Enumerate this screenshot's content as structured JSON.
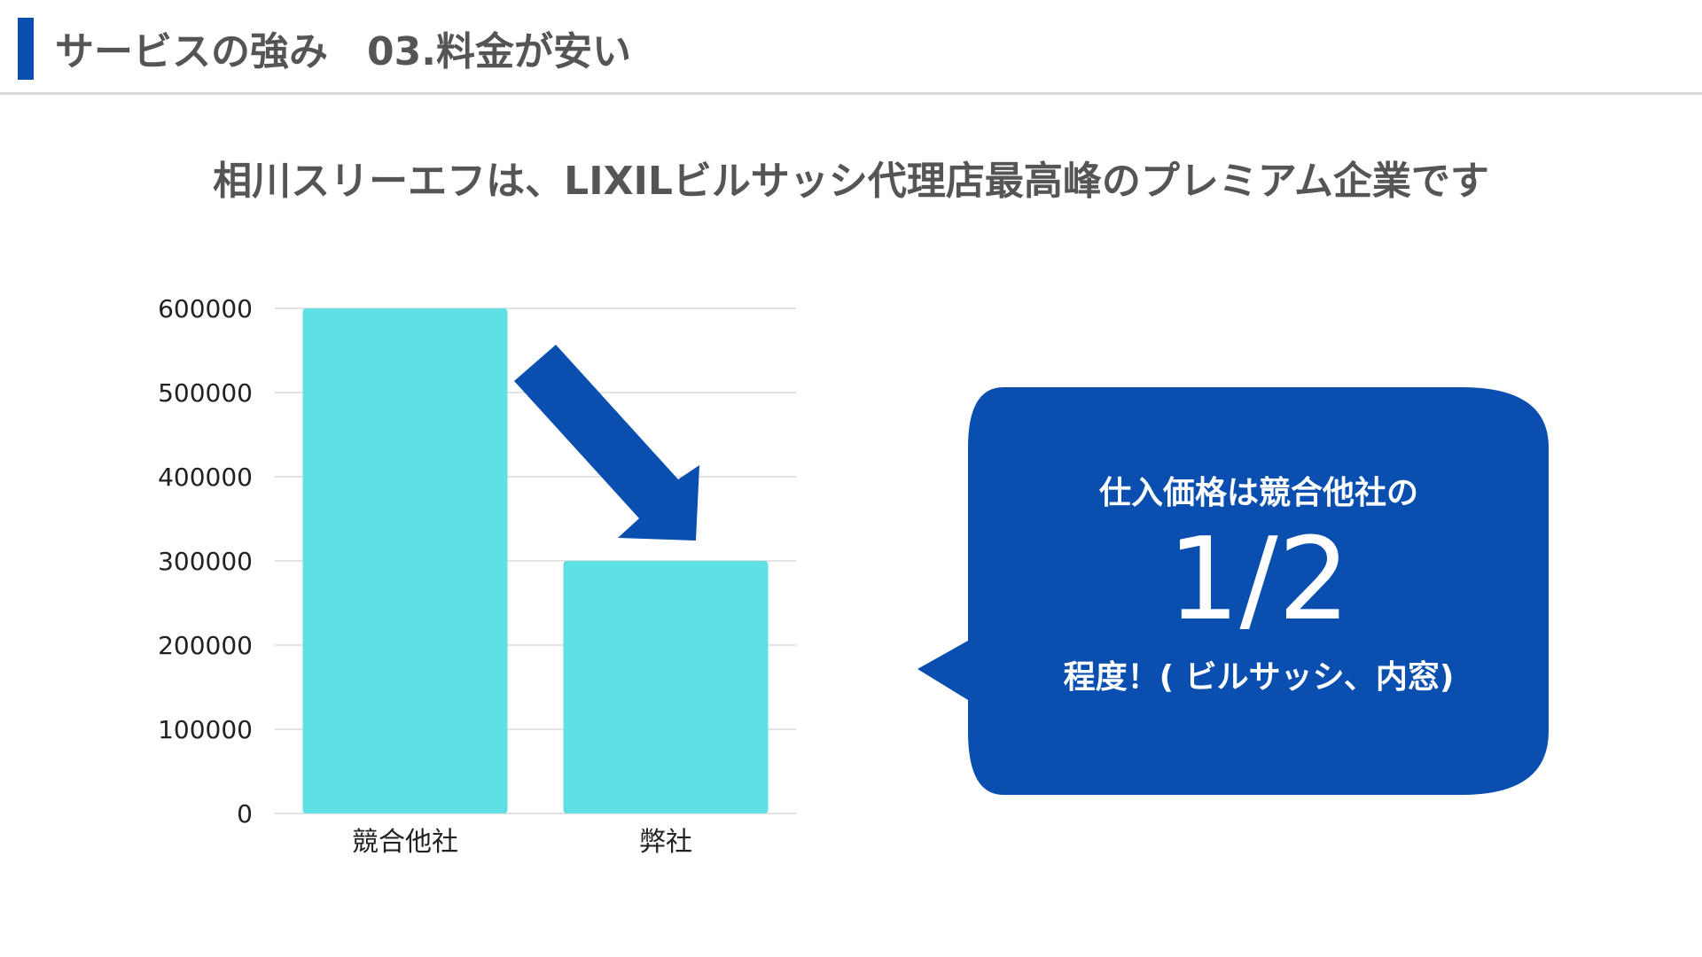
{
  "header": {
    "title": "サービスの強み　03.料金が安い"
  },
  "subtitle": "相川スリーエフは、LIXILビルサッシ代理店最高峰のプレミアム企業です",
  "callout": {
    "line1": "仕入価格は競合他社の",
    "big": "1/2",
    "line3": "程度！( ビルサッシ、内窓)"
  },
  "colors": {
    "bar": "#5ee0e4",
    "accent": "#0a4fb0",
    "title_text": "#555555"
  },
  "chart_data": {
    "type": "bar",
    "categories": [
      "競合他社",
      "弊社"
    ],
    "values": [
      600000,
      300000
    ],
    "ylim": [
      0,
      600000
    ],
    "yticks": [
      0,
      100000,
      200000,
      300000,
      400000,
      500000,
      600000
    ],
    "ytick_labels": [
      "0",
      "100000",
      "200000",
      "300000",
      "400000",
      "500000",
      "600000"
    ],
    "grid": true,
    "legend": "none",
    "annotation": "arrow from first bar to second bar"
  }
}
